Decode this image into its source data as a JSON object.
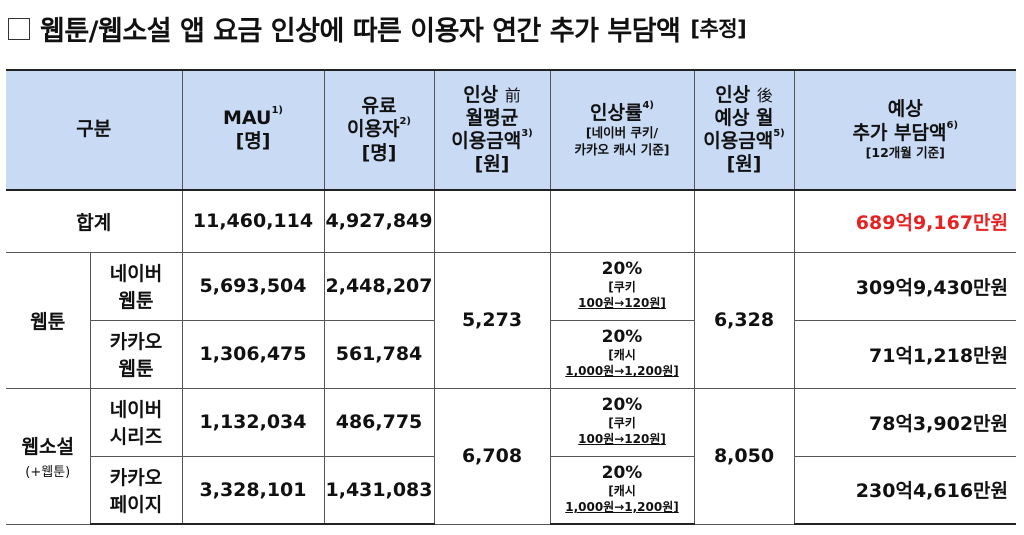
{
  "title": {
    "main": "웹툰/웹소설 앱 요금 인상에 따른 이용자 연간 추가 부담액",
    "tag": "[추정]"
  },
  "headers": {
    "category": "구분",
    "mau_line1": "MAU",
    "mau_sup": "1)",
    "mau_line2": "[명]",
    "paid_line1": "유료",
    "paid_line2": "이용자",
    "paid_sup": "2)",
    "paid_line3": "[명]",
    "before_line1": "인상",
    "before_mark": "前",
    "before_line2": "월평균",
    "before_line3": "이용금액",
    "before_sup": "3)",
    "before_line4": "[원]",
    "rate_line1": "인상률",
    "rate_sup": "4)",
    "rate_line2": "[네이버 쿠키/",
    "rate_line3": "카카오 캐시 기준]",
    "after_line1": "인상",
    "after_mark": "後",
    "after_line2": "예상 월",
    "after_line3": "이용금액",
    "after_sup": "5)",
    "after_line4": "[원]",
    "burden_line1": "예상",
    "burden_line2": "추가 부담액",
    "burden_sup": "6)",
    "burden_line3": "[12개월 기준]"
  },
  "total": {
    "label": "합계",
    "mau": "11,460,114",
    "paid": "4,927,849",
    "burden": "689억9,167만원"
  },
  "groups": [
    {
      "label": "웹툰",
      "sublabel": "",
      "before": "5,273",
      "after": "6,328",
      "rows": [
        {
          "name_line1": "네이버",
          "name_line2": "웹툰",
          "mau": "5,693,504",
          "paid": "2,448,207",
          "rate": "20%",
          "rate_note1": "[쿠키",
          "rate_note2": "100원→120원]",
          "burden": "309억9,430만원"
        },
        {
          "name_line1": "카카오",
          "name_line2": "웹툰",
          "mau": "1,306,475",
          "paid": "561,784",
          "rate": "20%",
          "rate_note1": "[캐시",
          "rate_note2": "1,000원→1,200원]",
          "burden": "71억1,218만원"
        }
      ]
    },
    {
      "label": "웹소설",
      "sublabel": "(+웹툰)",
      "before": "6,708",
      "after": "8,050",
      "rows": [
        {
          "name_line1": "네이버",
          "name_line2": "시리즈",
          "mau": "1,132,034",
          "paid": "486,775",
          "rate": "20%",
          "rate_note1": "[쿠키",
          "rate_note2": "100원→120원]",
          "burden": "78억3,902만원"
        },
        {
          "name_line1": "카카오",
          "name_line2": "페이지",
          "mau": "3,328,101",
          "paid": "1,431,083",
          "rate": "20%",
          "rate_note1": "[캐시",
          "rate_note2": "1,000원→1,200원]",
          "burden": "230억4,616만원"
        }
      ]
    }
  ],
  "colors": {
    "header_bg": "#c9daf4",
    "total_burden": "#e62222"
  }
}
